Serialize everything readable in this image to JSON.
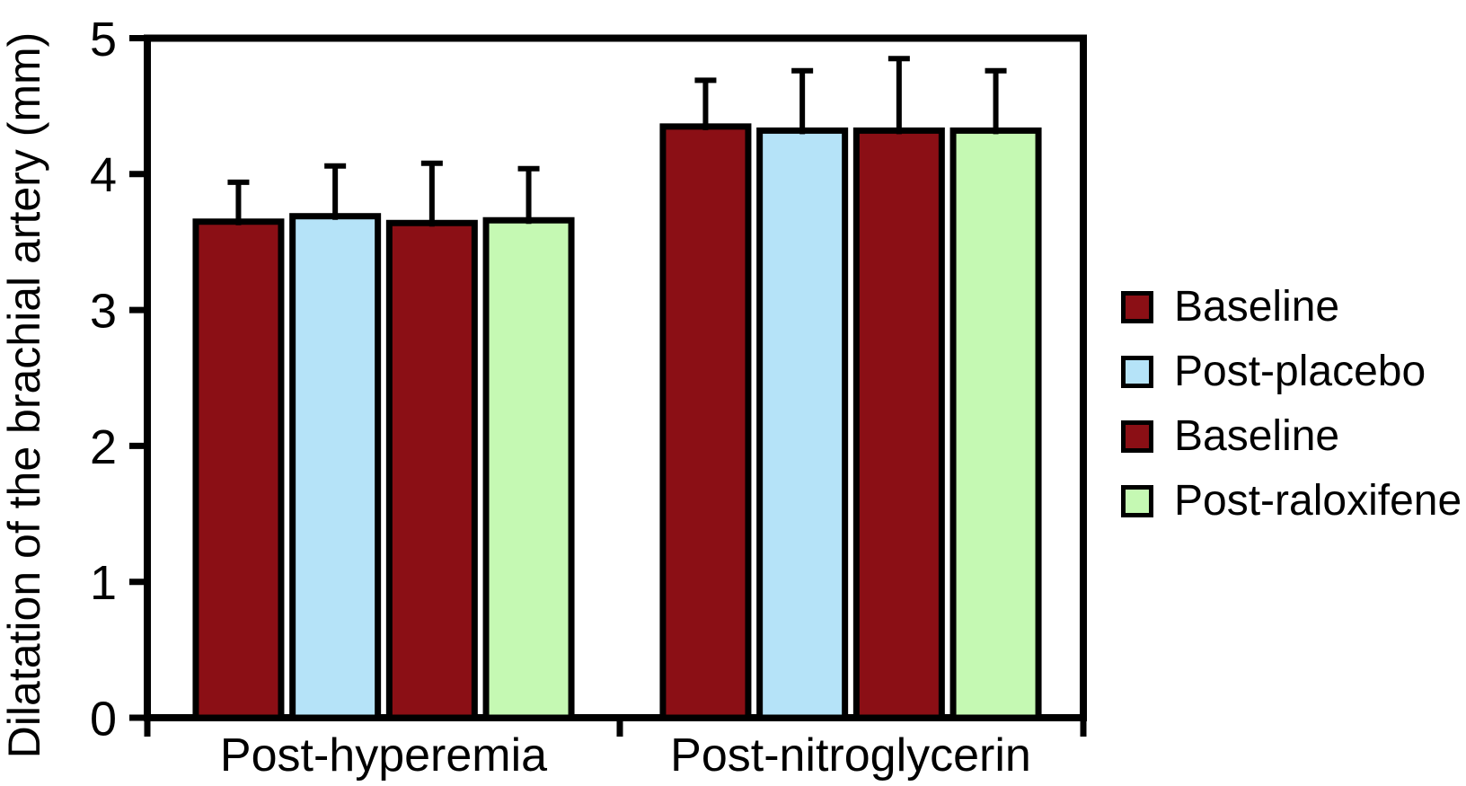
{
  "chart_data": {
    "type": "bar",
    "ylabel": "Dilatation of the brachial artery (mm)",
    "xlabel": "",
    "ylim": [
      0,
      5
    ],
    "yticks": [
      0,
      1,
      2,
      3,
      4,
      5
    ],
    "categories": [
      "Post-hyperemia",
      "Post-nitroglycerin"
    ],
    "series": [
      {
        "name": "Baseline",
        "color": "#8B0F15",
        "values": [
          3.65,
          4.35
        ],
        "errors_plus": [
          0.29,
          0.34
        ]
      },
      {
        "name": "Post-placebo",
        "color": "#B5E3F8",
        "values": [
          3.69,
          4.32
        ],
        "errors_plus": [
          0.37,
          0.44
        ]
      },
      {
        "name": "Baseline",
        "color": "#8B0F15",
        "values": [
          3.64,
          4.32
        ],
        "errors_plus": [
          0.44,
          0.53
        ]
      },
      {
        "name": "Post-raloxifene",
        "color": "#C5F9B3",
        "values": [
          3.66,
          4.32
        ],
        "errors_plus": [
          0.38,
          0.44
        ]
      }
    ],
    "legend_position": "right",
    "grid": false,
    "error_bars": "upper-only",
    "axis_color": "#000000",
    "background": "#FFFFFF"
  }
}
